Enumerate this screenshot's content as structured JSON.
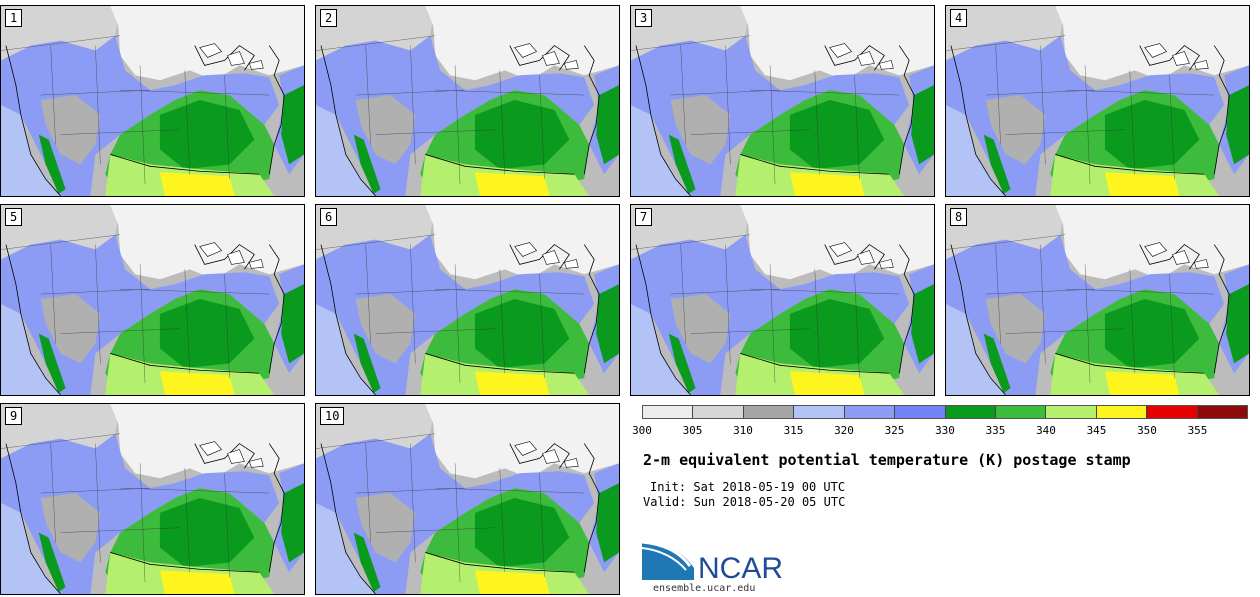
{
  "panels": [
    {
      "label": "1"
    },
    {
      "label": "2"
    },
    {
      "label": "3"
    },
    {
      "label": "4"
    },
    {
      "label": "5"
    },
    {
      "label": "6"
    },
    {
      "label": "7"
    },
    {
      "label": "8"
    },
    {
      "label": "9"
    },
    {
      "label": "10"
    }
  ],
  "colorbar": {
    "ticks": [
      "300",
      "305",
      "310",
      "315",
      "320",
      "325",
      "330",
      "335",
      "340",
      "345",
      "350",
      "355"
    ],
    "colors": [
      "#ededed",
      "#d6d6d6",
      "#a5a5a5",
      "#b4c3f5",
      "#8c9cf5",
      "#7383f5",
      "#0a9b1e",
      "#3cbb3c",
      "#b4f06e",
      "#fff51e",
      "#e60000",
      "#8c0a0a"
    ]
  },
  "title": "2-m equivalent potential temperature (K) postage stamp",
  "init": "Init: Sat 2018-05-19 00 UTC",
  "valid": "Valid: Sun 2018-05-20 05 UTC",
  "logo": {
    "text": "NCAR",
    "color": "#1f4c96"
  },
  "site": "ensemble.ucar.edu"
}
